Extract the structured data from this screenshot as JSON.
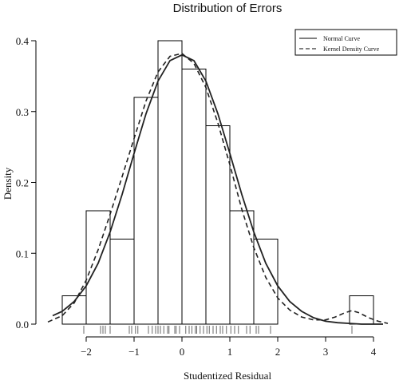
{
  "chart_data": {
    "type": "histogram",
    "title": "Distribution of Errors",
    "xlabel": "Studentized Residual",
    "ylabel": "Density",
    "xlim": [
      -2.7,
      4.2
    ],
    "ylim": [
      0,
      0.42
    ],
    "x_ticks": [
      {
        "value": -2,
        "label": "−2"
      },
      {
        "value": -1,
        "label": "−1"
      },
      {
        "value": 0,
        "label": "0"
      },
      {
        "value": 1,
        "label": "1"
      },
      {
        "value": 2,
        "label": "2"
      },
      {
        "value": 3,
        "label": "3"
      },
      {
        "value": 4,
        "label": "4"
      }
    ],
    "y_ticks": [
      {
        "value": 0.0,
        "label": "0.0"
      },
      {
        "value": 0.1,
        "label": "0.1"
      },
      {
        "value": 0.2,
        "label": "0.2"
      },
      {
        "value": 0.3,
        "label": "0.3"
      },
      {
        "value": 0.4,
        "label": "0.4"
      }
    ],
    "bins": [
      {
        "start": -2.5,
        "end": -2.0,
        "density": 0.04
      },
      {
        "start": -2.0,
        "end": -1.5,
        "density": 0.16
      },
      {
        "start": -1.5,
        "end": -1.0,
        "density": 0.12
      },
      {
        "start": -1.0,
        "end": -0.5,
        "density": 0.32
      },
      {
        "start": -0.5,
        "end": 0.0,
        "density": 0.4
      },
      {
        "start": 0.0,
        "end": 0.5,
        "density": 0.36
      },
      {
        "start": 0.5,
        "end": 1.0,
        "density": 0.28
      },
      {
        "start": 1.0,
        "end": 1.5,
        "density": 0.16
      },
      {
        "start": 1.5,
        "end": 2.0,
        "density": 0.12
      },
      {
        "start": 2.0,
        "end": 2.5,
        "density": 0.0
      },
      {
        "start": 2.5,
        "end": 3.0,
        "density": 0.0
      },
      {
        "start": 3.0,
        "end": 3.5,
        "density": 0.0
      },
      {
        "start": 3.5,
        "end": 4.0,
        "density": 0.04
      }
    ],
    "rug": [
      -2.05,
      -1.7,
      -1.65,
      -1.6,
      -1.5,
      -1.1,
      -1.05,
      -0.97,
      -0.92,
      -0.7,
      -0.62,
      -0.55,
      -0.5,
      -0.45,
      -0.38,
      -0.3,
      -0.27,
      -0.15,
      -0.12,
      -0.05,
      0.08,
      0.15,
      0.21,
      0.28,
      0.31,
      0.38,
      0.45,
      0.52,
      0.57,
      0.65,
      0.72,
      0.8,
      0.85,
      0.93,
      1.02,
      1.1,
      1.18,
      1.35,
      1.42,
      1.55,
      1.6,
      1.85,
      3.55
    ],
    "series": [
      {
        "name": "Normal Curve",
        "style": "solid",
        "x": [
          -2.7,
          -2.5,
          -2.25,
          -2.0,
          -1.75,
          -1.5,
          -1.25,
          -1.0,
          -0.75,
          -0.5,
          -0.25,
          0.0,
          0.25,
          0.5,
          0.75,
          1.0,
          1.25,
          1.5,
          1.75,
          2.0,
          2.25,
          2.5,
          2.75,
          3.0,
          3.25,
          3.5,
          3.75,
          4.0,
          4.2
        ],
        "y": [
          0.012,
          0.018,
          0.032,
          0.054,
          0.086,
          0.13,
          0.183,
          0.241,
          0.297,
          0.343,
          0.372,
          0.38,
          0.372,
          0.343,
          0.297,
          0.241,
          0.183,
          0.13,
          0.086,
          0.054,
          0.032,
          0.018,
          0.009,
          0.004,
          0.002,
          0.001,
          0.0,
          0.0,
          0.0
        ]
      },
      {
        "name": "Kernel Density Curve",
        "style": "dashed",
        "x": [
          -2.8,
          -2.5,
          -2.25,
          -2.0,
          -1.75,
          -1.5,
          -1.25,
          -1.0,
          -0.75,
          -0.5,
          -0.25,
          0.0,
          0.25,
          0.5,
          0.75,
          1.0,
          1.25,
          1.5,
          1.75,
          2.0,
          2.25,
          2.5,
          2.75,
          3.0,
          3.2,
          3.4,
          3.55,
          3.7,
          3.9,
          4.1,
          4.3
        ],
        "y": [
          0.003,
          0.012,
          0.03,
          0.062,
          0.105,
          0.155,
          0.208,
          0.262,
          0.315,
          0.356,
          0.378,
          0.382,
          0.368,
          0.334,
          0.284,
          0.225,
          0.162,
          0.108,
          0.066,
          0.037,
          0.02,
          0.01,
          0.006,
          0.006,
          0.01,
          0.016,
          0.019,
          0.016,
          0.009,
          0.004,
          0.001
        ]
      }
    ],
    "legend_position": "top-right"
  }
}
